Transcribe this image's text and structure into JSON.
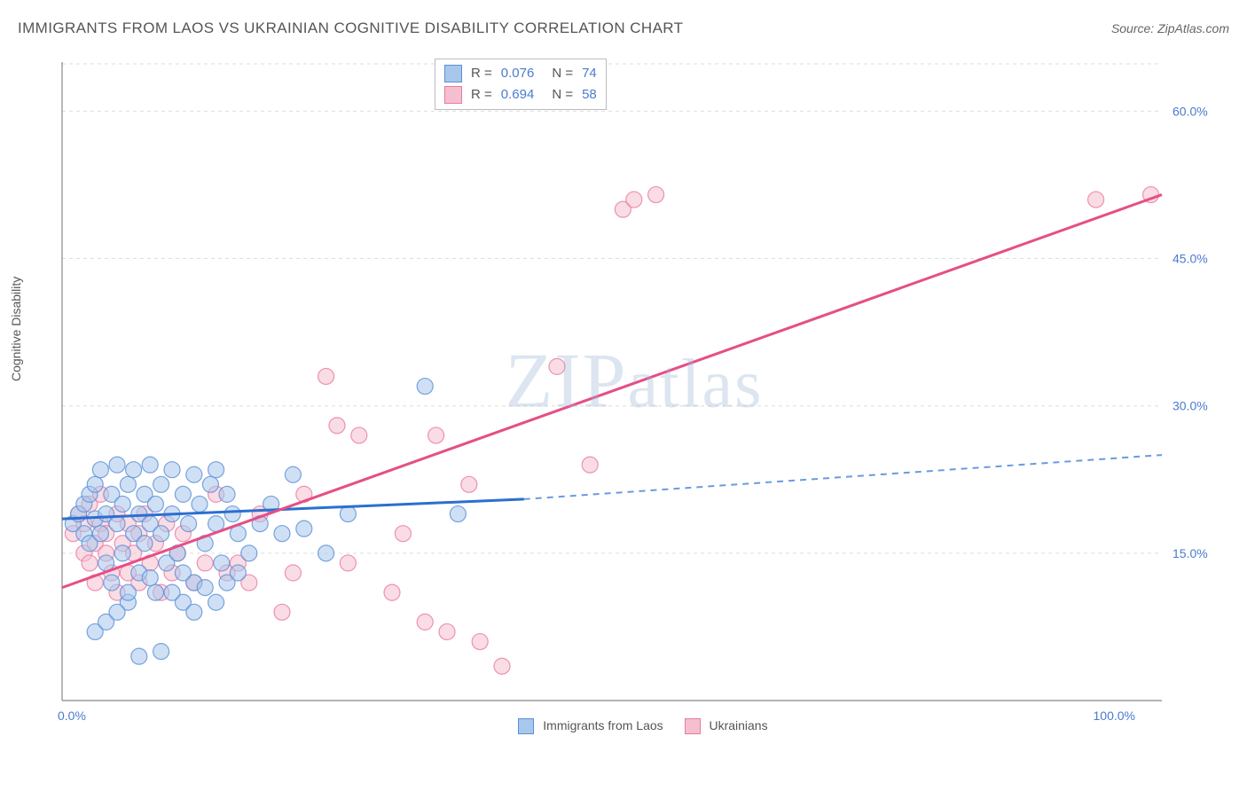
{
  "title": "IMMIGRANTS FROM LAOS VS UKRAINIAN COGNITIVE DISABILITY CORRELATION CHART",
  "source": "Source: ZipAtlas.com",
  "ylabel": "Cognitive Disability",
  "watermark": "ZIPatlas",
  "series_a": {
    "name": "Immigrants from Laos",
    "fill": "#a7c7ec",
    "stroke": "#5a8fd6",
    "line": "#2b6fd0"
  },
  "series_b": {
    "name": "Ukrainians",
    "fill": "#f6bfd0",
    "stroke": "#e87aa0",
    "line": "#e54f85"
  },
  "legend": {
    "rows": [
      {
        "swatch_fill": "#a7c7ec",
        "swatch_stroke": "#5a8fd6",
        "r": "0.076",
        "n": "74"
      },
      {
        "swatch_fill": "#f6bfd0",
        "swatch_stroke": "#e87aa0",
        "r": "0.694",
        "n": "58"
      }
    ]
  },
  "chart": {
    "type": "scatter",
    "xlim": [
      0,
      100
    ],
    "ylim": [
      0,
      65
    ],
    "ytick_values": [
      15,
      30,
      45,
      60
    ],
    "ytick_labels": [
      "15.0%",
      "30.0%",
      "45.0%",
      "60.0%"
    ],
    "xtick_left": "0.0%",
    "xtick_right": "100.0%",
    "grid_color": "#dddddd",
    "axis_color": "#888888",
    "marker_radius": 9,
    "marker_opacity": 0.55,
    "line_a": {
      "x1": 0,
      "y1": 18.5,
      "x2_solid": 42,
      "y2_solid": 20.5,
      "x2": 100,
      "y2": 25.0
    },
    "line_b": {
      "x1": 0,
      "y1": 11.5,
      "x2": 100,
      "y2": 51.5
    }
  },
  "points_a": [
    [
      1,
      18
    ],
    [
      1.5,
      19
    ],
    [
      2,
      17
    ],
    [
      2,
      20
    ],
    [
      2.5,
      21
    ],
    [
      2.5,
      16
    ],
    [
      3,
      18.5
    ],
    [
      3,
      22
    ],
    [
      3.5,
      17
    ],
    [
      3.5,
      23.5
    ],
    [
      4,
      19
    ],
    [
      4,
      14
    ],
    [
      4.5,
      21
    ],
    [
      4.5,
      12
    ],
    [
      5,
      18
    ],
    [
      5,
      24
    ],
    [
      5.5,
      15
    ],
    [
      5.5,
      20
    ],
    [
      6,
      22
    ],
    [
      6,
      10
    ],
    [
      6.5,
      17
    ],
    [
      6.5,
      23.5
    ],
    [
      7,
      19
    ],
    [
      7,
      13
    ],
    [
      7.5,
      21
    ],
    [
      7.5,
      16
    ],
    [
      8,
      18
    ],
    [
      8,
      24
    ],
    [
      8.5,
      11
    ],
    [
      8.5,
      20
    ],
    [
      9,
      17
    ],
    [
      9,
      22
    ],
    [
      9.5,
      14
    ],
    [
      10,
      19
    ],
    [
      10,
      23.5
    ],
    [
      10.5,
      15
    ],
    [
      11,
      21
    ],
    [
      11,
      10
    ],
    [
      11.5,
      18
    ],
    [
      12,
      23
    ],
    [
      12,
      12
    ],
    [
      12.5,
      20
    ],
    [
      13,
      16
    ],
    [
      13.5,
      22
    ],
    [
      14,
      18
    ],
    [
      14,
      23.5
    ],
    [
      14.5,
      14
    ],
    [
      15,
      21
    ],
    [
      15.5,
      19
    ],
    [
      16,
      17
    ],
    [
      7,
      4.5
    ],
    [
      9,
      5
    ],
    [
      3,
      7
    ],
    [
      4,
      8
    ],
    [
      5,
      9
    ],
    [
      6,
      11
    ],
    [
      8,
      12.5
    ],
    [
      10,
      11
    ],
    [
      11,
      13
    ],
    [
      12,
      9
    ],
    [
      13,
      11.5
    ],
    [
      14,
      10
    ],
    [
      15,
      12
    ],
    [
      16,
      13
    ],
    [
      17,
      15
    ],
    [
      18,
      18
    ],
    [
      19,
      20
    ],
    [
      20,
      17
    ],
    [
      21,
      23
    ],
    [
      22,
      17.5
    ],
    [
      24,
      15
    ],
    [
      26,
      19
    ],
    [
      33,
      32
    ],
    [
      36,
      19
    ]
  ],
  "points_b": [
    [
      1,
      17
    ],
    [
      1.5,
      19
    ],
    [
      2,
      15
    ],
    [
      2,
      18
    ],
    [
      2.5,
      14
    ],
    [
      2.5,
      20
    ],
    [
      3,
      16
    ],
    [
      3,
      12
    ],
    [
      3.5,
      18
    ],
    [
      3.5,
      21
    ],
    [
      4,
      15
    ],
    [
      4,
      17
    ],
    [
      4.5,
      13
    ],
    [
      5,
      19
    ],
    [
      5,
      11
    ],
    [
      5.5,
      16
    ],
    [
      6,
      18
    ],
    [
      6,
      13
    ],
    [
      6.5,
      15
    ],
    [
      7,
      17
    ],
    [
      7,
      12
    ],
    [
      7.5,
      19
    ],
    [
      8,
      14
    ],
    [
      8.5,
      16
    ],
    [
      9,
      11
    ],
    [
      9.5,
      18
    ],
    [
      10,
      13
    ],
    [
      10.5,
      15
    ],
    [
      11,
      17
    ],
    [
      12,
      12
    ],
    [
      13,
      14
    ],
    [
      14,
      21
    ],
    [
      15,
      13
    ],
    [
      16,
      14
    ],
    [
      17,
      12
    ],
    [
      18,
      19
    ],
    [
      20,
      9
    ],
    [
      21,
      13
    ],
    [
      22,
      21
    ],
    [
      24,
      33
    ],
    [
      25,
      28
    ],
    [
      26,
      14
    ],
    [
      27,
      27
    ],
    [
      30,
      11
    ],
    [
      31,
      17
    ],
    [
      33,
      8
    ],
    [
      34,
      27
    ],
    [
      35,
      7
    ],
    [
      37,
      22
    ],
    [
      38,
      6
    ],
    [
      40,
      3.5
    ],
    [
      45,
      34
    ],
    [
      48,
      24
    ],
    [
      51,
      50
    ],
    [
      52,
      51
    ],
    [
      54,
      51.5
    ],
    [
      94,
      51
    ],
    [
      99,
      51.5
    ]
  ]
}
